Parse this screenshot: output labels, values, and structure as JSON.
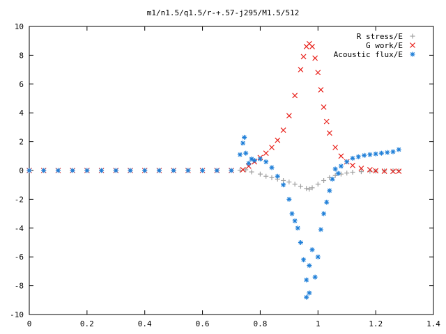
{
  "chart_data": {
    "type": "scatter",
    "title": "m1/n1.5/q1.5/r-+.57-j295/M1.5/512",
    "xlabel": "",
    "ylabel": "",
    "xlim": [
      0,
      1.4
    ],
    "ylim": [
      -10,
      10
    ],
    "x_ticks": [
      0,
      0.2,
      0.4,
      0.6,
      0.8,
      1,
      1.2,
      1.4
    ],
    "x_tick_labels": [
      "0",
      "0.2",
      "0.4",
      "0.6",
      "0.8",
      "1",
      "1.2",
      "1.4"
    ],
    "y_ticks": [
      -10,
      -8,
      -6,
      -4,
      -2,
      0,
      2,
      4,
      6,
      8,
      10
    ],
    "y_tick_labels": [
      "-10",
      "-8",
      "-6",
      "-4",
      "-2",
      "0",
      "2",
      "4",
      "6",
      "8",
      "10"
    ],
    "grid": false,
    "legend_position": "top-right",
    "series": [
      {
        "name": "R stress/E",
        "marker": "plus",
        "color": "#a0a0a0",
        "points": [
          [
            0.0,
            0.0
          ],
          [
            0.05,
            0.0
          ],
          [
            0.1,
            0.0
          ],
          [
            0.15,
            0.0
          ],
          [
            0.2,
            0.0
          ],
          [
            0.25,
            0.0
          ],
          [
            0.3,
            0.0
          ],
          [
            0.35,
            0.0
          ],
          [
            0.4,
            0.0
          ],
          [
            0.45,
            0.0
          ],
          [
            0.5,
            0.0
          ],
          [
            0.55,
            0.0
          ],
          [
            0.6,
            0.0
          ],
          [
            0.65,
            0.0
          ],
          [
            0.7,
            0.0
          ],
          [
            0.73,
            0.02
          ],
          [
            0.75,
            0.05
          ],
          [
            0.77,
            -0.1
          ],
          [
            0.8,
            -0.25
          ],
          [
            0.82,
            -0.4
          ],
          [
            0.84,
            -0.5
          ],
          [
            0.86,
            -0.6
          ],
          [
            0.88,
            -0.7
          ],
          [
            0.9,
            -0.8
          ],
          [
            0.92,
            -0.95
          ],
          [
            0.94,
            -1.1
          ],
          [
            0.96,
            -1.25
          ],
          [
            0.97,
            -1.3
          ],
          [
            0.98,
            -1.2
          ],
          [
            1.0,
            -0.95
          ],
          [
            1.02,
            -0.7
          ],
          [
            1.04,
            -0.5
          ],
          [
            1.06,
            -0.35
          ],
          [
            1.08,
            -0.25
          ],
          [
            1.1,
            -0.18
          ],
          [
            1.12,
            -0.12
          ],
          [
            1.15,
            -0.08
          ],
          [
            1.18,
            -0.05
          ],
          [
            1.2,
            -0.04
          ],
          [
            1.23,
            -0.03
          ],
          [
            1.26,
            -0.02
          ],
          [
            1.28,
            -0.02
          ]
        ]
      },
      {
        "name": "G work/E",
        "marker": "cross",
        "color": "#e8201a",
        "points": [
          [
            0.0,
            0.0
          ],
          [
            0.05,
            0.0
          ],
          [
            0.1,
            0.0
          ],
          [
            0.15,
            0.0
          ],
          [
            0.2,
            0.0
          ],
          [
            0.25,
            0.0
          ],
          [
            0.3,
            0.0
          ],
          [
            0.35,
            0.0
          ],
          [
            0.4,
            0.0
          ],
          [
            0.45,
            0.0
          ],
          [
            0.5,
            0.0
          ],
          [
            0.55,
            0.0
          ],
          [
            0.6,
            0.0
          ],
          [
            0.65,
            0.0
          ],
          [
            0.7,
            0.0
          ],
          [
            0.74,
            0.05
          ],
          [
            0.76,
            0.3
          ],
          [
            0.78,
            0.6
          ],
          [
            0.8,
            0.9
          ],
          [
            0.82,
            1.2
          ],
          [
            0.84,
            1.6
          ],
          [
            0.86,
            2.1
          ],
          [
            0.88,
            2.8
          ],
          [
            0.9,
            3.8
          ],
          [
            0.92,
            5.2
          ],
          [
            0.94,
            7.0
          ],
          [
            0.95,
            7.9
          ],
          [
            0.96,
            8.6
          ],
          [
            0.97,
            8.8
          ],
          [
            0.98,
            8.6
          ],
          [
            0.99,
            7.8
          ],
          [
            1.0,
            6.8
          ],
          [
            1.01,
            5.6
          ],
          [
            1.02,
            4.4
          ],
          [
            1.03,
            3.4
          ],
          [
            1.04,
            2.6
          ],
          [
            1.06,
            1.6
          ],
          [
            1.08,
            1.0
          ],
          [
            1.1,
            0.6
          ],
          [
            1.12,
            0.35
          ],
          [
            1.15,
            0.15
          ],
          [
            1.18,
            0.05
          ],
          [
            1.2,
            -0.02
          ],
          [
            1.23,
            -0.05
          ],
          [
            1.26,
            -0.06
          ],
          [
            1.28,
            -0.05
          ]
        ]
      },
      {
        "name": "Acoustic flux/E",
        "marker": "star",
        "color": "#1f7fd8",
        "points": [
          [
            0.0,
            0.0
          ],
          [
            0.05,
            0.0
          ],
          [
            0.1,
            0.0
          ],
          [
            0.15,
            0.0
          ],
          [
            0.2,
            0.0
          ],
          [
            0.25,
            0.0
          ],
          [
            0.3,
            0.0
          ],
          [
            0.35,
            0.0
          ],
          [
            0.4,
            0.0
          ],
          [
            0.45,
            0.0
          ],
          [
            0.5,
            0.0
          ],
          [
            0.55,
            0.0
          ],
          [
            0.6,
            0.0
          ],
          [
            0.65,
            0.0
          ],
          [
            0.7,
            0.0
          ],
          [
            0.73,
            1.1
          ],
          [
            0.74,
            1.9
          ],
          [
            0.745,
            2.3
          ],
          [
            0.75,
            1.2
          ],
          [
            0.76,
            0.5
          ],
          [
            0.77,
            0.8
          ],
          [
            0.78,
            0.7
          ],
          [
            0.8,
            0.8
          ],
          [
            0.82,
            0.6
          ],
          [
            0.84,
            0.2
          ],
          [
            0.86,
            -0.4
          ],
          [
            0.88,
            -1.0
          ],
          [
            0.9,
            -2.0
          ],
          [
            0.91,
            -3.0
          ],
          [
            0.92,
            -3.5
          ],
          [
            0.93,
            -4.0
          ],
          [
            0.94,
            -5.0
          ],
          [
            0.95,
            -6.2
          ],
          [
            0.96,
            -7.6
          ],
          [
            0.96,
            -8.8
          ],
          [
            0.97,
            -8.5
          ],
          [
            0.97,
            -6.6
          ],
          [
            0.98,
            -5.5
          ],
          [
            0.99,
            -7.4
          ],
          [
            1.0,
            -6.0
          ],
          [
            1.01,
            -4.1
          ],
          [
            1.02,
            -3.0
          ],
          [
            1.03,
            -2.2
          ],
          [
            1.04,
            -1.4
          ],
          [
            1.05,
            -0.6
          ],
          [
            1.06,
            0.1
          ],
          [
            1.07,
            -0.2
          ],
          [
            1.08,
            0.3
          ],
          [
            1.1,
            0.6
          ],
          [
            1.12,
            0.85
          ],
          [
            1.14,
            0.95
          ],
          [
            1.16,
            1.05
          ],
          [
            1.18,
            1.1
          ],
          [
            1.2,
            1.15
          ],
          [
            1.22,
            1.2
          ],
          [
            1.24,
            1.25
          ],
          [
            1.26,
            1.3
          ],
          [
            1.28,
            1.45
          ]
        ]
      }
    ]
  }
}
